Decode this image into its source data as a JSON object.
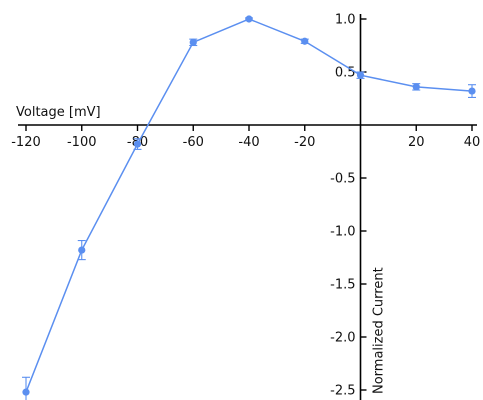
{
  "chart_data": {
    "type": "line",
    "title": "",
    "xlabel": "Voltage [mV]",
    "ylabel": "Normalized Current",
    "xlim": [
      -120,
      40
    ],
    "ylim": [
      -2.6,
      1.0
    ],
    "x_ticks": [
      -120,
      -100,
      -80,
      -60,
      -40,
      -20,
      20,
      40
    ],
    "x_tick_labels": [
      "-120",
      "-100",
      "-80",
      "-60",
      "-40",
      "-20",
      "20",
      "40"
    ],
    "y_ticks": [
      1.0,
      0.5,
      -0.5,
      -1.0,
      -1.5,
      -2.0,
      -2.5
    ],
    "y_tick_labels": [
      "1.0",
      "0.5",
      "-0.5",
      "-1.0",
      "-1.5",
      "-2.0",
      "-2.5"
    ],
    "grid": false,
    "color": "#5b8ff0",
    "series": [
      {
        "x": [
          -120,
          -100,
          -80,
          -60,
          -40,
          -20,
          0,
          20,
          40
        ],
        "y": [
          -2.52,
          -1.18,
          -0.18,
          0.78,
          1.0,
          0.79,
          0.47,
          0.36,
          0.32
        ],
        "err": [
          0.14,
          0.09,
          0.05,
          0.03,
          0.01,
          0.02,
          0.03,
          0.03,
          0.06
        ]
      }
    ]
  }
}
